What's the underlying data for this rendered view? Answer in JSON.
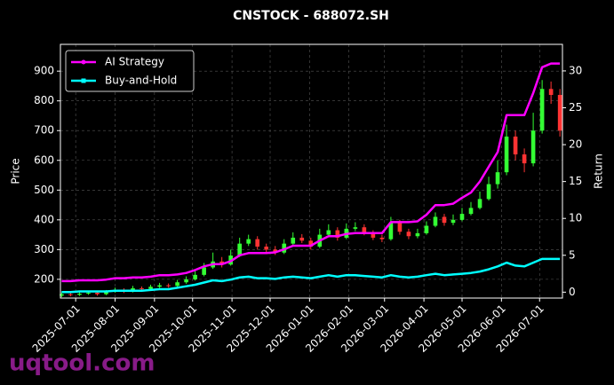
{
  "chart_data": {
    "type": "candlestick",
    "title": "CNSTOCK - 688072.SH",
    "y_label": "Price",
    "y2_label": "Return",
    "watermark": "uqtool.com",
    "x": [
      "2025-06-20",
      "2025-06-27",
      "2025-07-04",
      "2025-07-11",
      "2025-07-18",
      "2025-07-25",
      "2025-08-01",
      "2025-08-08",
      "2025-08-15",
      "2025-08-22",
      "2025-08-29",
      "2025-09-05",
      "2025-09-12",
      "2025-09-19",
      "2025-09-26",
      "2025-10-03",
      "2025-10-10",
      "2025-10-17",
      "2025-10-24",
      "2025-10-31",
      "2025-11-07",
      "2025-11-14",
      "2025-11-21",
      "2025-11-28",
      "2025-12-05",
      "2025-12-12",
      "2025-12-19",
      "2025-12-26",
      "2026-01-02",
      "2026-01-09",
      "2026-01-16",
      "2026-01-23",
      "2026-01-30",
      "2026-02-06",
      "2026-02-13",
      "2026-02-20",
      "2026-02-27",
      "2026-03-06",
      "2026-03-13",
      "2026-03-20",
      "2026-03-27",
      "2026-04-03",
      "2026-04-10",
      "2026-04-17",
      "2026-04-24",
      "2026-05-01",
      "2026-05-08",
      "2026-05-15",
      "2026-05-22",
      "2026-05-29",
      "2026-06-05",
      "2026-06-12",
      "2026-06-19",
      "2026-06-26",
      "2026-07-03",
      "2026-07-10",
      "2026-07-17"
    ],
    "open": [
      145,
      150,
      148,
      152,
      155,
      150,
      158,
      165,
      160,
      170,
      168,
      175,
      180,
      178,
      190,
      200,
      215,
      240,
      260,
      250,
      280,
      320,
      335,
      310,
      300,
      290,
      320,
      340,
      330,
      310,
      350,
      365,
      340,
      370,
      375,
      355,
      340,
      335,
      390,
      360,
      345,
      355,
      380,
      410,
      390,
      400,
      420,
      440,
      470,
      520,
      560,
      680,
      620,
      590,
      700,
      840,
      820
    ],
    "high": [
      156,
      155,
      158,
      162,
      160,
      164,
      172,
      170,
      178,
      176,
      182,
      188,
      186,
      198,
      210,
      228,
      255,
      290,
      275,
      300,
      340,
      350,
      345,
      320,
      312,
      335,
      358,
      352,
      340,
      370,
      385,
      375,
      388,
      392,
      385,
      365,
      350,
      410,
      400,
      370,
      370,
      395,
      425,
      420,
      418,
      440,
      460,
      495,
      545,
      600,
      720,
      700,
      640,
      760,
      870,
      865,
      840
    ],
    "low": [
      140,
      143,
      144,
      148,
      145,
      147,
      155,
      154,
      156,
      162,
      163,
      171,
      172,
      174,
      185,
      196,
      210,
      235,
      240,
      246,
      275,
      312,
      300,
      292,
      282,
      285,
      315,
      322,
      300,
      305,
      345,
      330,
      335,
      362,
      348,
      332,
      325,
      330,
      350,
      335,
      338,
      350,
      375,
      380,
      382,
      395,
      415,
      435,
      465,
      505,
      550,
      600,
      560,
      580,
      690,
      790,
      680
    ],
    "close": [
      150,
      148,
      152,
      155,
      150,
      158,
      165,
      160,
      170,
      168,
      175,
      180,
      178,
      190,
      200,
      215,
      240,
      260,
      250,
      280,
      320,
      335,
      310,
      300,
      290,
      320,
      340,
      330,
      310,
      350,
      365,
      340,
      370,
      375,
      355,
      340,
      335,
      390,
      360,
      345,
      355,
      380,
      410,
      390,
      400,
      420,
      440,
      470,
      520,
      560,
      680,
      620,
      590,
      700,
      840,
      820,
      700
    ],
    "up_color": "#33ff33",
    "down_color": "#ff3333",
    "series": [
      {
        "name": "AI Strategy",
        "color": "#ff00ff",
        "axis": "y2",
        "values": [
          1.5,
          1.5,
          1.6,
          1.6,
          1.6,
          1.7,
          1.9,
          1.9,
          2.0,
          2.0,
          2.1,
          2.3,
          2.3,
          2.4,
          2.6,
          3.0,
          3.5,
          3.8,
          3.8,
          4.2,
          5.0,
          5.3,
          5.3,
          5.3,
          5.4,
          5.8,
          6.3,
          6.3,
          6.3,
          7.0,
          7.6,
          7.6,
          7.9,
          8.0,
          8.0,
          8.0,
          8.0,
          9.5,
          9.5,
          9.5,
          9.6,
          10.5,
          11.8,
          11.8,
          12.0,
          12.8,
          13.5,
          15.0,
          17.0,
          19.0,
          24.0,
          24.0,
          24.0,
          27.0,
          30.5,
          31.0,
          31.0
        ]
      },
      {
        "name": "Buy-and-Hold",
        "color": "#00ffff",
        "axis": "y2",
        "values": [
          0,
          0,
          0.1,
          0.1,
          0.1,
          0.1,
          0.2,
          0.2,
          0.2,
          0.2,
          0.3,
          0.4,
          0.4,
          0.6,
          0.8,
          1.0,
          1.3,
          1.6,
          1.5,
          1.7,
          2.0,
          2.1,
          1.9,
          1.9,
          1.8,
          2.0,
          2.1,
          2.0,
          1.9,
          2.1,
          2.3,
          2.1,
          2.3,
          2.3,
          2.2,
          2.1,
          2.0,
          2.3,
          2.1,
          2.0,
          2.1,
          2.3,
          2.5,
          2.3,
          2.4,
          2.5,
          2.6,
          2.8,
          3.1,
          3.5,
          4.0,
          3.6,
          3.5,
          4.0,
          4.5,
          4.5,
          4.5
        ]
      }
    ],
    "xlim": [
      "2025-06-19",
      "2026-07-19"
    ],
    "xticks": [
      "2025-07-01",
      "2025-08-01",
      "2025-09-01",
      "2025-10-01",
      "2025-11-01",
      "2025-12-01",
      "2026-01-01",
      "2026-02-01",
      "2026-03-01",
      "2026-04-01",
      "2026-05-01",
      "2026-06-01",
      "2026-07-01"
    ],
    "ylim": [
      137,
      990
    ],
    "yticks": [
      200,
      300,
      400,
      500,
      600,
      700,
      800,
      900
    ],
    "y2lim": [
      -0.8,
      33.6
    ],
    "y2ticks": [
      0,
      5,
      10,
      15,
      20,
      25,
      30
    ],
    "grid": true,
    "legend": "upper left"
  }
}
